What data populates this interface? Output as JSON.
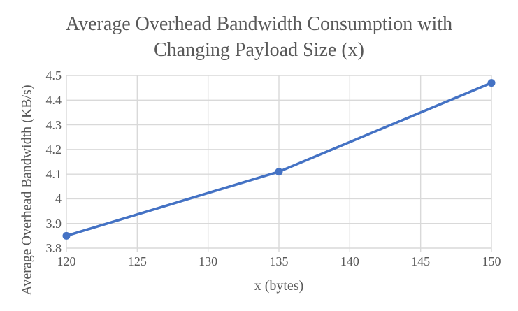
{
  "chart_data": {
    "type": "line",
    "title": "Average Overhead Bandwidth Consumption with Changing Payload Size (x)",
    "title_lines": [
      "Average Overhead Bandwidth Consumption with",
      "Changing Payload Size (x)"
    ],
    "xlabel": "x (bytes)",
    "ylabel": "Average Overhead Bandwidth (KB/s)",
    "points": [
      {
        "x": 120,
        "y": 3.85
      },
      {
        "x": 135,
        "y": 4.11
      },
      {
        "x": 150,
        "y": 4.47
      }
    ],
    "xlim": [
      120,
      150
    ],
    "ylim": [
      3.8,
      4.5
    ],
    "x_ticks": [
      {
        "value": 120,
        "label": "120"
      },
      {
        "value": 125,
        "label": "125"
      },
      {
        "value": 130,
        "label": "130"
      },
      {
        "value": 135,
        "label": "135"
      },
      {
        "value": 140,
        "label": "140"
      },
      {
        "value": 145,
        "label": "145"
      },
      {
        "value": 150,
        "label": "150"
      }
    ],
    "y_ticks": [
      {
        "value": 3.8,
        "label": "3.8"
      },
      {
        "value": 3.9,
        "label": "3.9"
      },
      {
        "value": 4.0,
        "label": "4"
      },
      {
        "value": 4.1,
        "label": "4.1"
      },
      {
        "value": 4.2,
        "label": "4.2"
      },
      {
        "value": 4.3,
        "label": "4.3"
      },
      {
        "value": 4.4,
        "label": "4.4"
      },
      {
        "value": 4.5,
        "label": "4.5"
      }
    ],
    "grid": true,
    "legend": null,
    "colors": {
      "line": "#4472C4",
      "marker": "#4472C4",
      "grid": "#D9D9D9",
      "axis": "#D9D9D9",
      "text": "#595959",
      "background": "#FFFFFF"
    }
  }
}
